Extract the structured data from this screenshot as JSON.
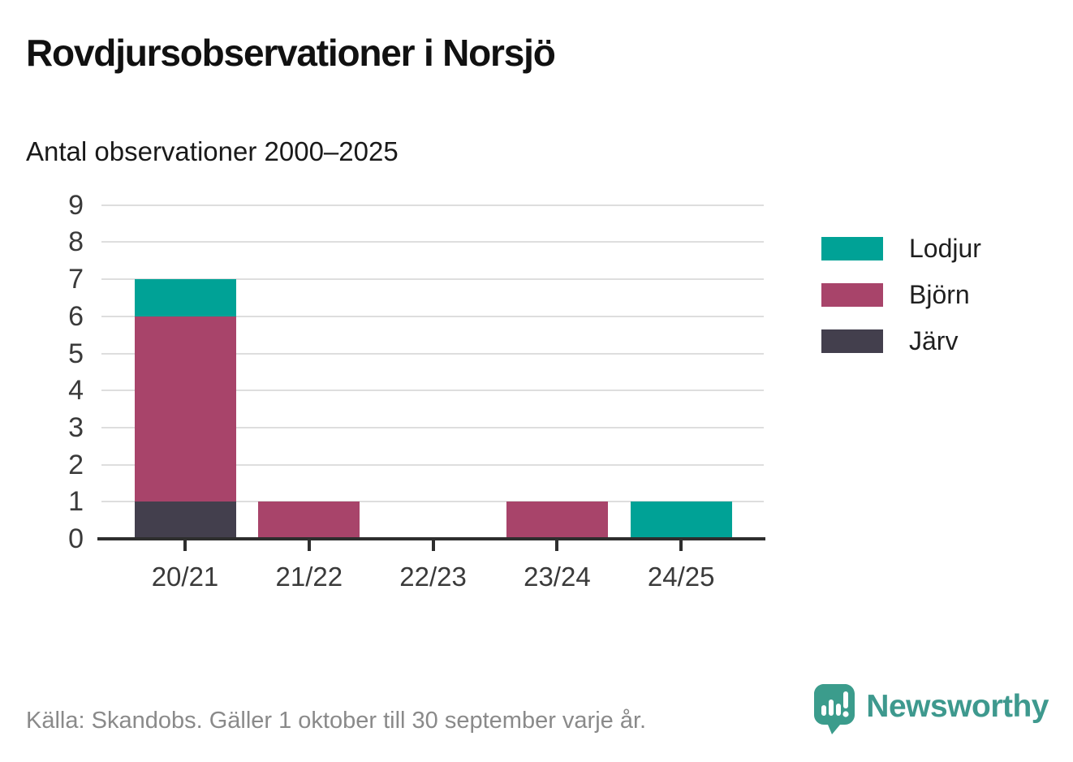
{
  "title": "Rovdjursobservationer i Norsjö",
  "subtitle": "Antal observationer 2000–2025",
  "footer": {
    "source": "Källa: Skandobs. Gäller 1 oktober till 30 september varje år.",
    "brand": "Newsworthy",
    "brand_icon": "newsworthy-pin-barchart-icon"
  },
  "colors": {
    "lodjur": "#00a296",
    "bjorn": "#a8446a",
    "jarv": "#433f4d",
    "axis": "#2e2e2e",
    "gridline": "#dedede",
    "tick_label": "#3a3a3a",
    "source_text": "#8a8a8a",
    "brand_teal": "#3e998e"
  },
  "chart_data": {
    "type": "bar",
    "stacked": true,
    "title": "Rovdjursobservationer i Norsjö",
    "subtitle": "Antal observationer 2000–2025",
    "categories": [
      "20/21",
      "21/22",
      "22/23",
      "23/24",
      "24/25"
    ],
    "series": [
      {
        "name": "Järv",
        "color_key": "jarv",
        "values": [
          1,
          0,
          0,
          0,
          0
        ]
      },
      {
        "name": "Björn",
        "color_key": "bjorn",
        "values": [
          5,
          1,
          0,
          1,
          0
        ]
      },
      {
        "name": "Lodjur",
        "color_key": "lodjur",
        "values": [
          1,
          0,
          0,
          0,
          1
        ]
      }
    ],
    "totals": [
      7,
      1,
      0,
      1,
      1
    ],
    "legend": [
      {
        "label": "Lodjur",
        "color_key": "lodjur"
      },
      {
        "label": "Björn",
        "color_key": "bjorn"
      },
      {
        "label": "Järv",
        "color_key": "jarv"
      }
    ],
    "legend_position": "right",
    "xlabel": "",
    "ylabel": "",
    "ylim": [
      0,
      9
    ],
    "yticks": [
      0,
      1,
      2,
      3,
      4,
      5,
      6,
      7,
      8,
      9
    ],
    "grid": "horizontal"
  }
}
